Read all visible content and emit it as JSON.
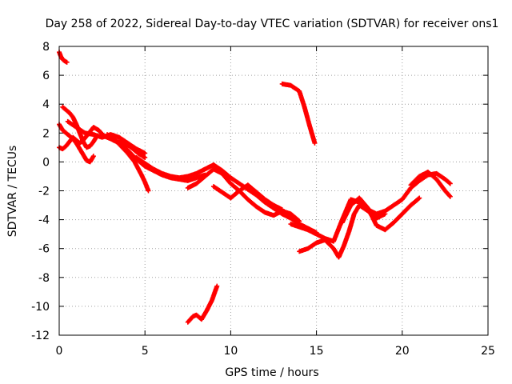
{
  "chart_data": {
    "type": "scatter",
    "title": "Day 258 of 2022, Sidereal Day-to-day VTEC variation (SDTVAR) for receiver ons1",
    "xlabel": "GPS time / hours",
    "ylabel": "SDTVAR / TECUs",
    "xlim": [
      0,
      25
    ],
    "ylim": [
      -12,
      8
    ],
    "xticks": [
      0,
      5,
      10,
      15,
      20,
      25
    ],
    "yticks": [
      -12,
      -10,
      -8,
      -6,
      -4,
      -2,
      0,
      2,
      4,
      6,
      8
    ],
    "grid": true,
    "marker": "plus",
    "color": "#ff0000",
    "series": [
      {
        "name": "arc-top-left",
        "x": [
          0.0,
          0.1,
          0.2,
          0.3,
          0.45
        ],
        "y": [
          7.6,
          7.3,
          7.1,
          7.0,
          6.9
        ]
      },
      {
        "name": "arc-a",
        "x": [
          0.0,
          0.2,
          0.4,
          0.6,
          0.8,
          1.0,
          1.2,
          1.4,
          1.6,
          1.8,
          2.0,
          2.3,
          2.6,
          3.0,
          3.4,
          3.8,
          4.2,
          4.6,
          5.0
        ],
        "y": [
          1.0,
          0.9,
          1.1,
          1.4,
          1.7,
          1.5,
          1.3,
          1.5,
          1.8,
          2.1,
          2.4,
          2.2,
          1.8,
          1.6,
          1.4,
          1.3,
          1.0,
          0.6,
          0.3
        ]
      },
      {
        "name": "arc-b",
        "x": [
          0.2,
          0.4,
          0.6,
          0.8,
          1.0,
          1.2,
          1.4,
          1.6,
          1.8,
          2.0,
          2.2
        ],
        "y": [
          3.8,
          3.6,
          3.4,
          3.1,
          2.6,
          2.0,
          1.4,
          1.0,
          1.1,
          1.4,
          1.8
        ]
      },
      {
        "name": "arc-c",
        "x": [
          0.0,
          0.2,
          0.4,
          0.6,
          0.8,
          1.0,
          1.2,
          1.4,
          1.6,
          1.8,
          2.0
        ],
        "y": [
          2.6,
          2.2,
          2.0,
          1.8,
          1.6,
          1.3,
          0.9,
          0.5,
          0.1,
          0.0,
          0.4
        ]
      },
      {
        "name": "arc-d",
        "x": [
          0.5,
          1.0,
          1.5,
          2.0,
          2.5,
          3.0,
          3.5,
          4.0,
          4.5,
          5.0
        ],
        "y": [
          2.8,
          2.4,
          2.0,
          1.9,
          1.7,
          1.9,
          1.7,
          1.3,
          0.9,
          0.6
        ]
      },
      {
        "name": "arc-e",
        "x": [
          2.8,
          3.2,
          3.6,
          4.0,
          4.4,
          4.8,
          5.0,
          5.2
        ],
        "y": [
          1.9,
          1.6,
          1.1,
          0.6,
          0.0,
          -0.9,
          -1.4,
          -2.0
        ]
      },
      {
        "name": "arc-f",
        "x": [
          3.0,
          3.5,
          4.0,
          4.5,
          5.0,
          5.5,
          6.0,
          6.5,
          7.0,
          7.5,
          8.0,
          8.5
        ],
        "y": [
          1.6,
          1.3,
          0.8,
          0.2,
          -0.3,
          -0.6,
          -0.9,
          -1.1,
          -1.2,
          -1.3,
          -1.1,
          -0.9
        ]
      },
      {
        "name": "arc-g",
        "x": [
          4.5,
          5.0,
          5.5,
          6.0,
          6.5,
          7.0,
          7.5,
          8.0,
          8.5,
          9.0,
          9.5,
          10.0,
          10.5,
          11.0,
          11.5,
          12.0,
          12.5,
          13.0,
          13.5,
          14.0,
          14.5,
          15.0
        ],
        "y": [
          0.3,
          -0.1,
          -0.5,
          -0.8,
          -1.0,
          -1.1,
          -1.0,
          -0.8,
          -0.5,
          -0.2,
          -0.6,
          -1.1,
          -1.5,
          -1.9,
          -2.3,
          -2.8,
          -3.2,
          -3.6,
          -3.9,
          -4.3,
          -4.6,
          -4.9
        ]
      },
      {
        "name": "arc-h",
        "x": [
          7.5,
          8.0,
          8.5,
          9.0,
          9.5,
          10.0,
          10.5,
          11.0,
          11.5,
          12.0,
          12.5,
          13.0
        ],
        "y": [
          -1.8,
          -1.5,
          -1.0,
          -0.5,
          -0.8,
          -1.5,
          -2.0,
          -1.6,
          -2.1,
          -2.6,
          -3.0,
          -3.3
        ]
      },
      {
        "name": "arc-i",
        "x": [
          9.0,
          9.5,
          10.0,
          10.5,
          11.0,
          11.5,
          12.0,
          12.5,
          13.0,
          13.5,
          14.0
        ],
        "y": [
          -1.7,
          -2.1,
          -2.5,
          -2.0,
          -2.6,
          -3.1,
          -3.5,
          -3.7,
          -3.4,
          -3.6,
          -4.1
        ]
      },
      {
        "name": "arc-j",
        "x": [
          13.5,
          14.0,
          14.5,
          15.0,
          15.5,
          16.0,
          16.5,
          17.0,
          17.5,
          18.0,
          18.5,
          19.0,
          19.5,
          20.0,
          20.5,
          21.0,
          21.5,
          22.0,
          22.5,
          22.8
        ],
        "y": [
          -4.3,
          -4.5,
          -4.7,
          -5.0,
          -5.3,
          -5.5,
          -4.0,
          -2.6,
          -2.8,
          -3.3,
          -3.6,
          -3.4,
          -3.0,
          -2.6,
          -1.8,
          -1.3,
          -0.9,
          -0.8,
          -1.2,
          -1.5
        ]
      },
      {
        "name": "arc-k",
        "x": [
          14.0,
          14.5,
          15.0,
          15.5,
          16.0,
          16.3,
          16.6,
          16.9,
          17.2,
          17.5,
          18.0,
          18.5,
          19.0
        ],
        "y": [
          -6.2,
          -6.0,
          -5.6,
          -5.4,
          -6.0,
          -6.6,
          -5.8,
          -4.8,
          -3.6,
          -3.0,
          -3.4,
          -3.9,
          -3.6
        ]
      },
      {
        "name": "arc-l",
        "x": [
          16.5,
          17.0,
          17.5,
          18.0,
          18.5,
          19.0,
          19.5,
          20.0,
          20.5,
          21.0
        ],
        "y": [
          -4.2,
          -3.0,
          -2.5,
          -3.2,
          -4.4,
          -4.7,
          -4.2,
          -3.6,
          -3.0,
          -2.5
        ]
      },
      {
        "name": "arc-m",
        "x": [
          20.5,
          21.0,
          21.5,
          22.0,
          22.5,
          22.8
        ],
        "y": [
          -1.6,
          -1.0,
          -0.7,
          -1.2,
          -2.0,
          -2.4
        ]
      },
      {
        "name": "arc-n",
        "x": [
          13.0,
          13.5,
          14.0,
          14.3,
          14.6,
          14.9
        ],
        "y": [
          5.4,
          5.3,
          4.9,
          3.8,
          2.5,
          1.3
        ]
      },
      {
        "name": "arc-o",
        "x": [
          7.5,
          7.8,
          8.0,
          8.3,
          8.6,
          8.9,
          9.2
        ],
        "y": [
          -11.1,
          -10.7,
          -10.6,
          -10.9,
          -10.3,
          -9.6,
          -8.6
        ]
      }
    ]
  }
}
